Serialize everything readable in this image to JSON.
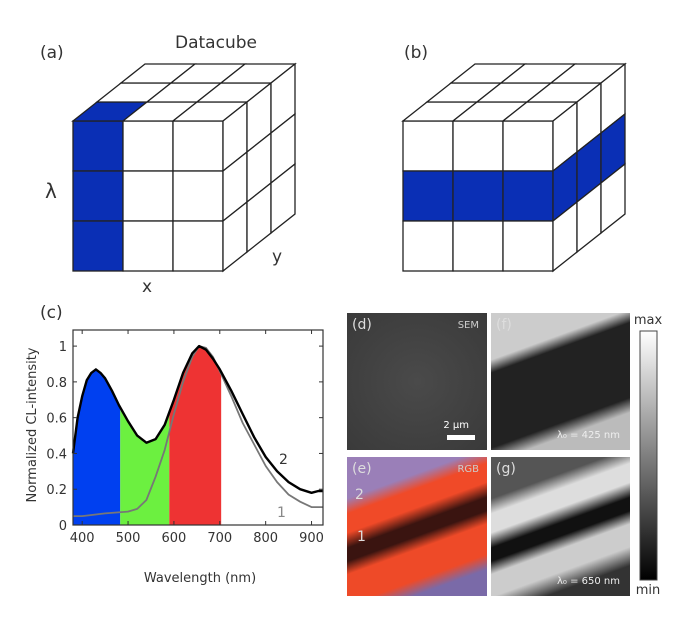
{
  "panels": {
    "a": {
      "label": "(a)",
      "title": "Datacube",
      "axis_lambda": "λ",
      "axis_x": "x",
      "axis_y": "y"
    },
    "b": {
      "label": "(b)"
    },
    "c": {
      "label": "(c)"
    },
    "d": {
      "label": "(d)",
      "tag": "SEM",
      "scalebar": "2 µm"
    },
    "e": {
      "label": "(e)",
      "tag": "RGB",
      "marker_1": "1",
      "marker_2": "2"
    },
    "f": {
      "label": "(f)",
      "wavelength": "λ₀ = 425 nm"
    },
    "g": {
      "label": "(g)",
      "wavelength": "λ₀ = 650 nm"
    },
    "colorbar": {
      "max": "max",
      "min": "min"
    }
  },
  "colors": {
    "cube_highlight": "#0a2fb5",
    "blue_band": "#0040f0",
    "green_band": "#6cf040",
    "red_band": "#ee3333"
  },
  "chart_data": {
    "type": "line",
    "xlabel": "Wavelength (nm)",
    "ylabel": "Normalized CL-intensity",
    "xlim": [
      380,
      925
    ],
    "ylim": [
      0,
      1.09
    ],
    "xticks": [
      400,
      500,
      600,
      700,
      800,
      900
    ],
    "yticks": [
      0,
      0.2,
      0.4,
      0.6,
      0.8,
      1
    ],
    "ytick_labels": [
      "0",
      "0.2",
      "0.4",
      "0.6",
      "0.8",
      "1"
    ],
    "grid": false,
    "series": [
      {
        "name": "2",
        "color": "#000000",
        "x": [
          380,
          390,
          400,
          410,
          420,
          430,
          440,
          450,
          465,
          480,
          500,
          520,
          540,
          560,
          580,
          600,
          620,
          640,
          655,
          670,
          685,
          700,
          725,
          750,
          775,
          800,
          825,
          850,
          875,
          900,
          915,
          925
        ],
        "y": [
          0.4,
          0.6,
          0.72,
          0.81,
          0.85,
          0.87,
          0.85,
          0.82,
          0.75,
          0.67,
          0.58,
          0.5,
          0.46,
          0.48,
          0.56,
          0.7,
          0.85,
          0.96,
          1.0,
          0.98,
          0.93,
          0.87,
          0.75,
          0.62,
          0.49,
          0.38,
          0.3,
          0.24,
          0.2,
          0.18,
          0.19,
          0.19
        ]
      },
      {
        "name": "1",
        "color": "#777777",
        "x": [
          380,
          400,
          450,
          500,
          520,
          540,
          560,
          580,
          600,
          620,
          640,
          655,
          670,
          685,
          700,
          725,
          750,
          775,
          800,
          825,
          850,
          875,
          900,
          925
        ],
        "y": [
          0.05,
          0.05,
          0.065,
          0.075,
          0.09,
          0.14,
          0.27,
          0.42,
          0.62,
          0.8,
          0.94,
          1.0,
          0.99,
          0.94,
          0.86,
          0.72,
          0.57,
          0.45,
          0.33,
          0.24,
          0.17,
          0.13,
          0.1,
          0.1
        ]
      }
    ],
    "bands": [
      {
        "from": 380,
        "to": 483,
        "color": "#0040f0"
      },
      {
        "from": 483,
        "to": 590,
        "color": "#6cf040"
      },
      {
        "from": 590,
        "to": 703,
        "color": "#ee3333"
      }
    ]
  }
}
